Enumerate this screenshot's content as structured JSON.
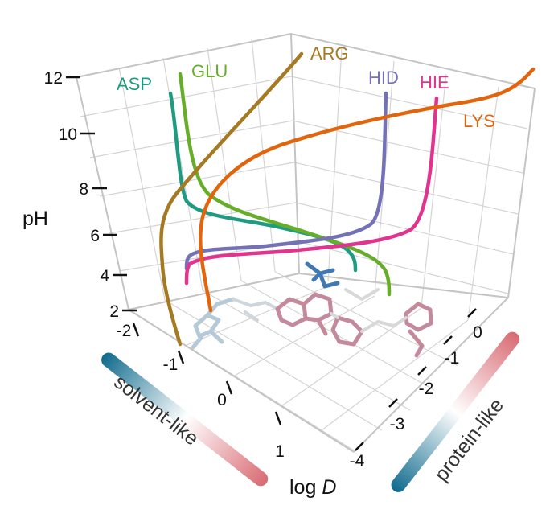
{
  "chart_data": {
    "type": "line",
    "subtype": "3d",
    "axes": {
      "z": {
        "label": "pH",
        "ticks": [
          "2",
          "4",
          "6",
          "8",
          "10",
          "12"
        ],
        "range": [
          2,
          12
        ]
      },
      "x": {
        "label": "log D",
        "label_main": "log ",
        "label_italic": "D",
        "ticks": [
          "-2",
          "-1",
          "0",
          "1"
        ],
        "range": [
          -2,
          1
        ]
      },
      "y": {
        "ticks": [
          "-4",
          "-3",
          "-2",
          "-1",
          "0"
        ],
        "range": [
          -4,
          0
        ]
      }
    },
    "grid": true,
    "series": [
      {
        "name": "ASP",
        "color": "#1e9b80"
      },
      {
        "name": "GLU",
        "color": "#66ae2a"
      },
      {
        "name": "ARG",
        "color": "#a67a22"
      },
      {
        "name": "HID",
        "color": "#7471b6"
      },
      {
        "name": "HIE",
        "color": "#e0348e"
      },
      {
        "name": "LYS",
        "color": "#e1650d"
      }
    ],
    "colorbars": [
      {
        "label": "solvent-like",
        "from": "#0f6a8d",
        "to": "#d86a72"
      },
      {
        "label": "protein-like",
        "from": "#0f6a8d",
        "to": "#d86a72"
      }
    ]
  }
}
